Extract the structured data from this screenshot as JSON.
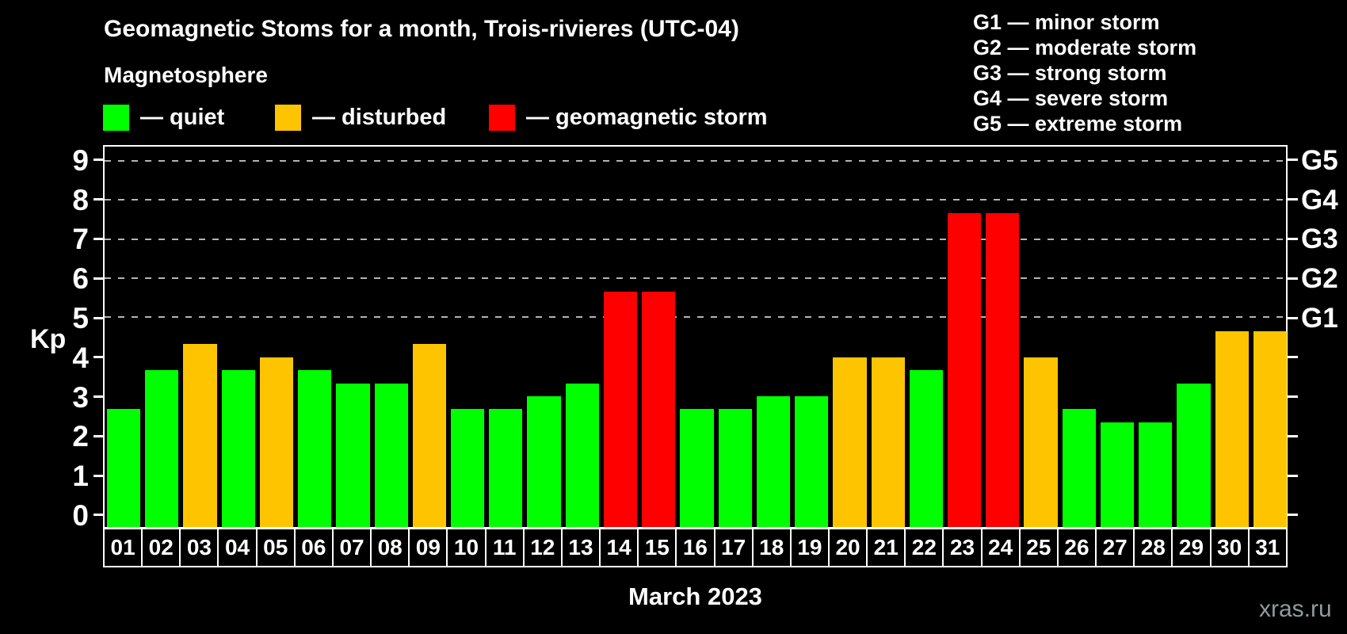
{
  "header": {
    "title": "Geomagnetic Stoms for a month, Trois-rivieres (UTC-04)",
    "subtitle": "Magnetosphere"
  },
  "legend": {
    "items": [
      {
        "name": "quiet",
        "label": "— quiet",
        "color": "#00ff00"
      },
      {
        "name": "disturbed",
        "label": "— disturbed",
        "color": "#ffc400"
      },
      {
        "name": "storm",
        "label": "— geomagnetic storm",
        "color": "#ff0000"
      }
    ]
  },
  "g_legend": {
    "items": [
      {
        "label": "G1 — minor storm"
      },
      {
        "label": "G2 — moderate storm"
      },
      {
        "label": "G3 — strong storm"
      },
      {
        "label": "G4 — severe storm"
      },
      {
        "label": "G5 — extreme storm"
      }
    ]
  },
  "watermark": "xras.ru",
  "chart_data": {
    "type": "bar",
    "title": "Geomagnetic Stoms for a month, Trois-rivieres (UTC-04)",
    "xlabel": "March 2023",
    "ylabel": "Kp",
    "ylim": [
      -0.342,
      9.38
    ],
    "grid": "dashed horizontal at Kp 5..9",
    "gridlines_at": [
      5,
      6,
      7,
      8,
      9
    ],
    "y_ticks": [
      0,
      1,
      2,
      3,
      4,
      5,
      6,
      7,
      8,
      9
    ],
    "right_axis_labels": [
      {
        "kp": 5,
        "label": "G1"
      },
      {
        "kp": 6,
        "label": "G2"
      },
      {
        "kp": 7,
        "label": "G3"
      },
      {
        "kp": 8,
        "label": "G4"
      },
      {
        "kp": 9,
        "label": "G5"
      }
    ],
    "categories": [
      "01",
      "02",
      "03",
      "04",
      "05",
      "06",
      "07",
      "08",
      "09",
      "10",
      "11",
      "12",
      "13",
      "14",
      "15",
      "16",
      "17",
      "18",
      "19",
      "20",
      "21",
      "22",
      "23",
      "24",
      "25",
      "26",
      "27",
      "28",
      "29",
      "30",
      "31"
    ],
    "values": [
      2.67,
      3.67,
      4.33,
      3.67,
      4.0,
      3.67,
      3.33,
      3.33,
      4.33,
      2.67,
      2.67,
      3.0,
      3.33,
      5.67,
      5.67,
      2.67,
      2.67,
      3.0,
      3.0,
      4.0,
      4.0,
      3.67,
      7.67,
      7.67,
      4.0,
      2.67,
      2.33,
      2.33,
      3.33,
      4.67,
      4.67
    ],
    "states": [
      "quiet",
      "quiet",
      "disturbed",
      "quiet",
      "disturbed",
      "quiet",
      "quiet",
      "quiet",
      "disturbed",
      "quiet",
      "quiet",
      "quiet",
      "quiet",
      "storm",
      "storm",
      "quiet",
      "quiet",
      "quiet",
      "quiet",
      "disturbed",
      "disturbed",
      "quiet",
      "storm",
      "storm",
      "disturbed",
      "quiet",
      "quiet",
      "quiet",
      "quiet",
      "disturbed",
      "disturbed"
    ],
    "state_colors": {
      "quiet": "#00ff00",
      "disturbed": "#ffc400",
      "storm": "#ff0000"
    },
    "legend_position": "top-left (series) and top-right (G scale)"
  }
}
